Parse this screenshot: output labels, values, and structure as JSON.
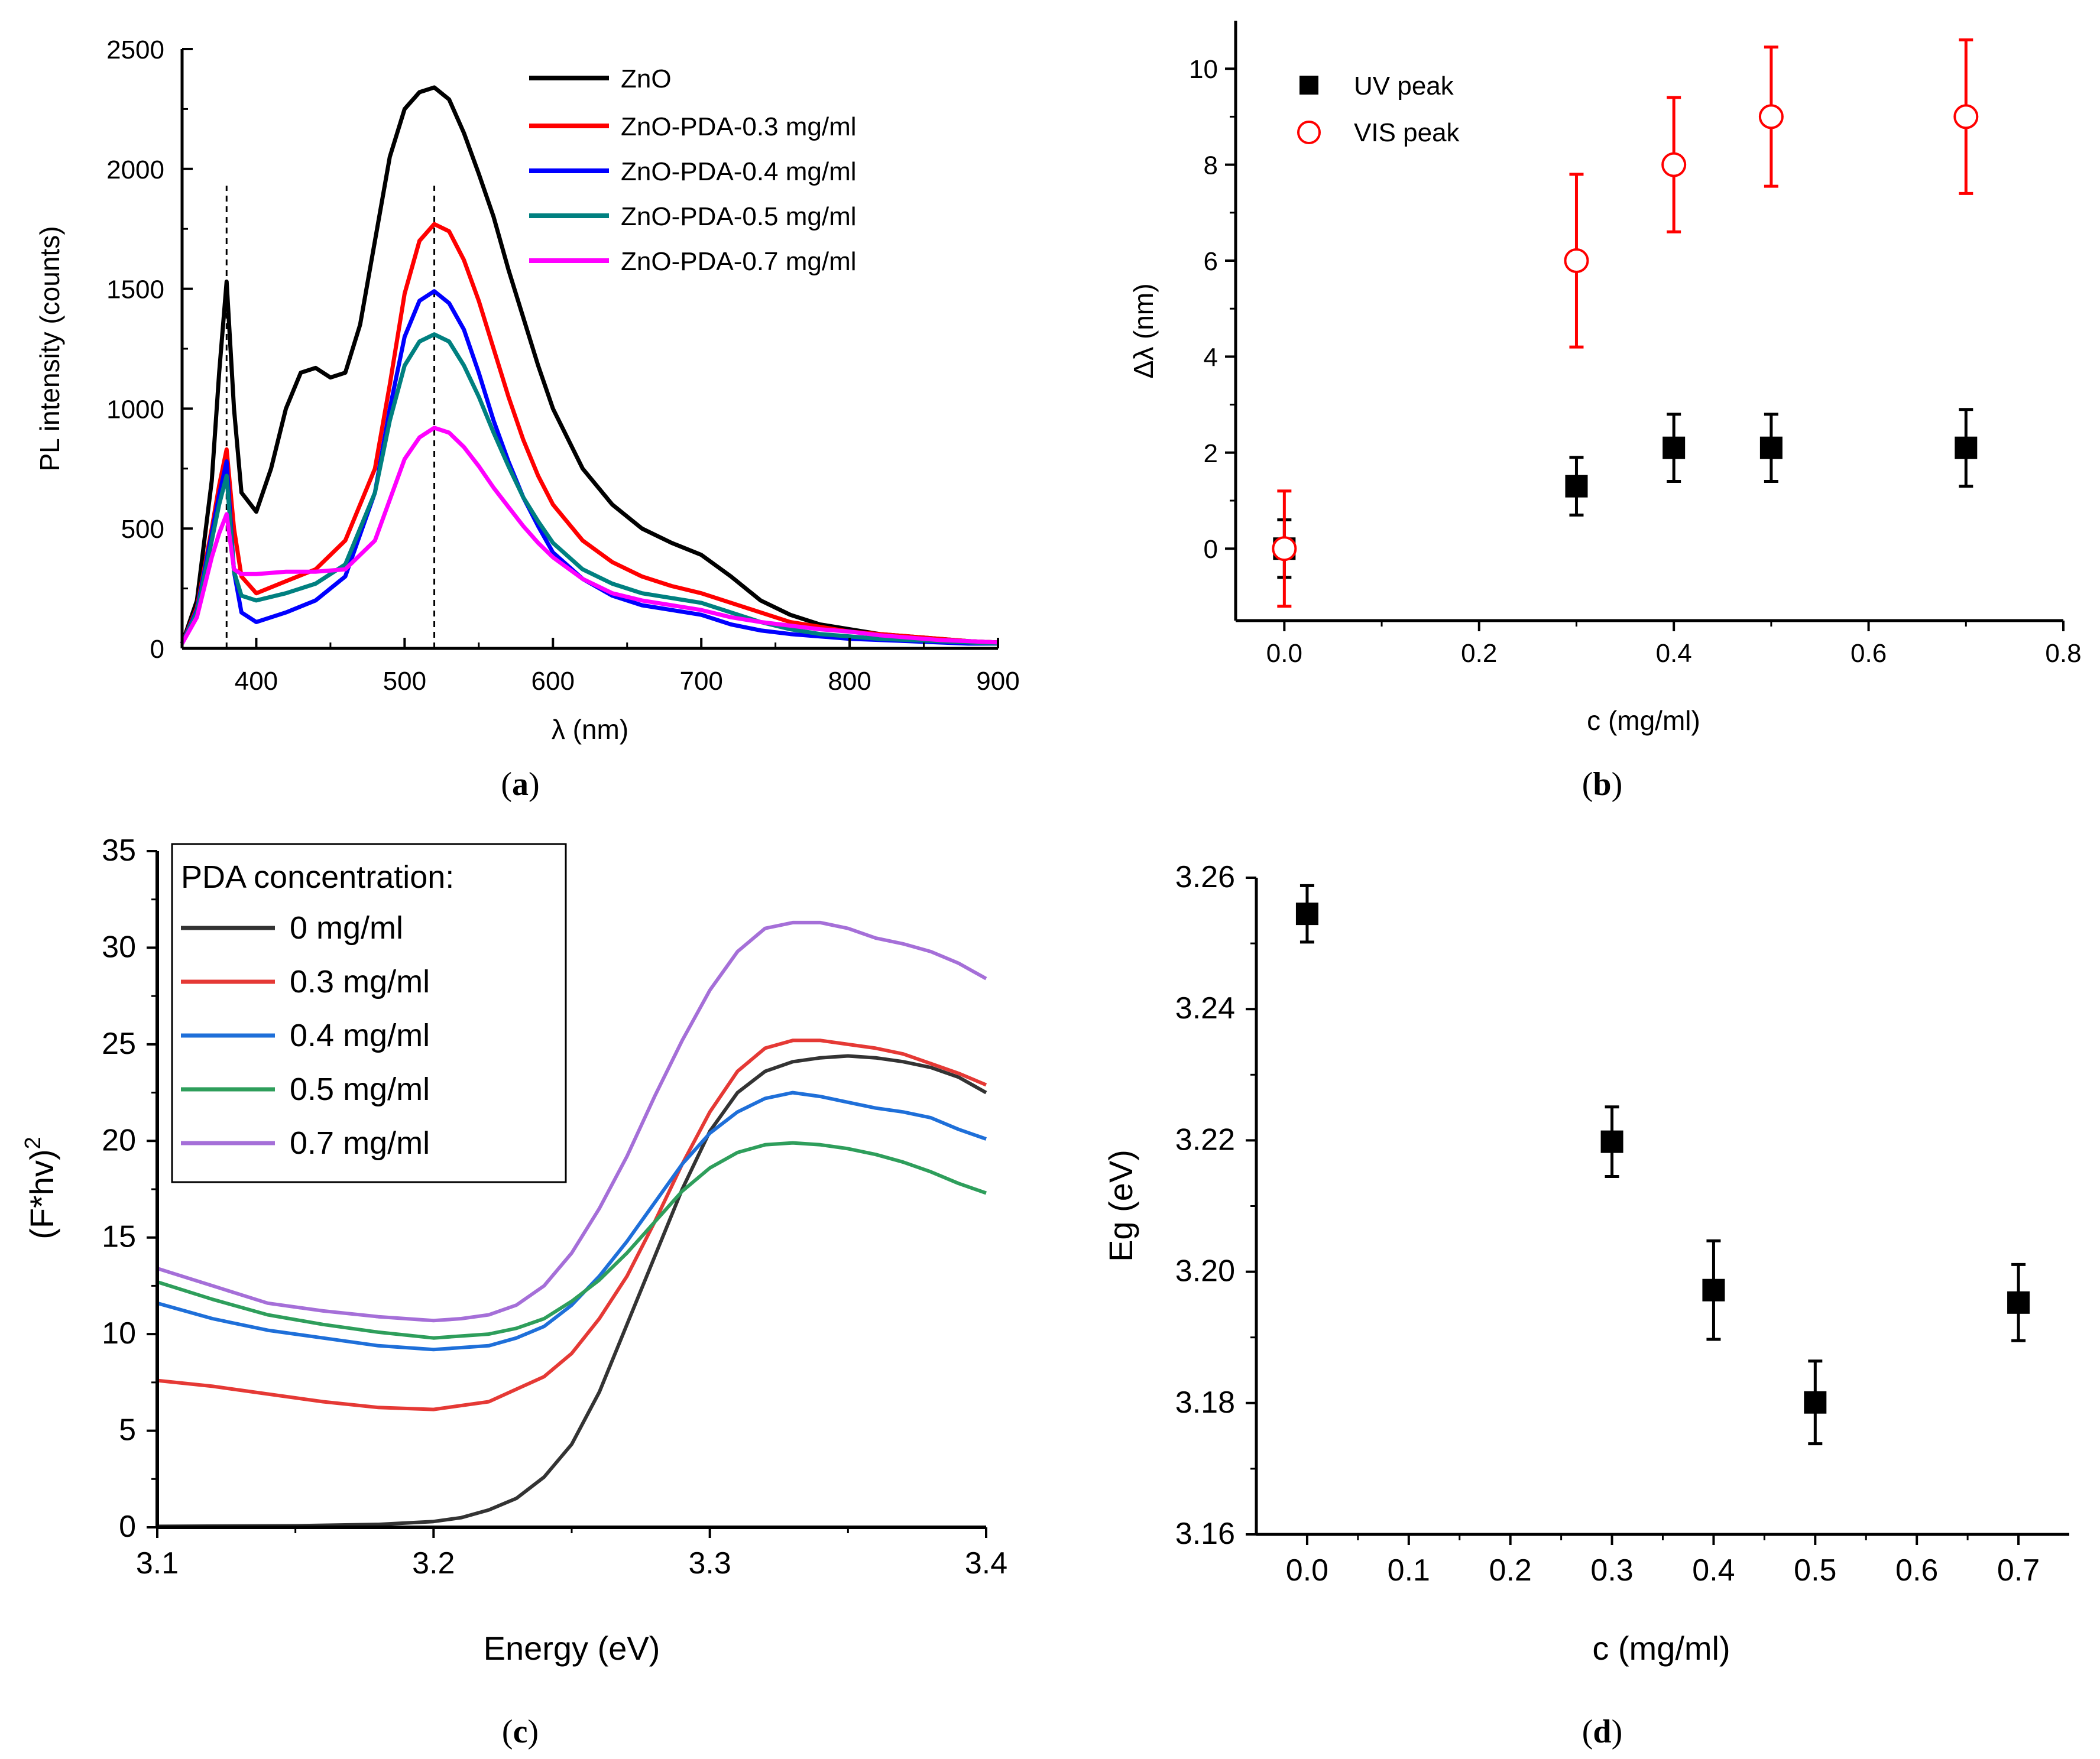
{
  "chart_data": [
    {
      "id": "a",
      "panel_label": "a",
      "type": "line",
      "xlabel": "λ (nm)",
      "ylabel": "PL intensity (counts)",
      "xlim": [
        350,
        900
      ],
      "ylim": [
        0,
        2500
      ],
      "xticks": [
        400,
        500,
        600,
        700,
        800,
        900
      ],
      "yticks": [
        0,
        500,
        1000,
        1500,
        2000,
        2500
      ],
      "grid": false,
      "legend_position": "top-right",
      "reference_lines_x": [
        380,
        520
      ],
      "series": [
        {
          "name": "ZnO",
          "color": "#000000",
          "x": [
            350,
            360,
            370,
            375,
            380,
            385,
            390,
            400,
            410,
            420,
            430,
            440,
            450,
            460,
            470,
            480,
            490,
            500,
            510,
            520,
            530,
            540,
            550,
            560,
            570,
            580,
            590,
            600,
            620,
            640,
            660,
            680,
            700,
            720,
            740,
            760,
            780,
            800,
            820,
            840,
            860,
            880,
            900
          ],
          "values": [
            20,
            200,
            700,
            1150,
            1530,
            1000,
            650,
            570,
            750,
            1000,
            1150,
            1170,
            1130,
            1150,
            1350,
            1700,
            2050,
            2250,
            2320,
            2340,
            2290,
            2150,
            1980,
            1800,
            1580,
            1380,
            1180,
            1000,
            750,
            600,
            500,
            440,
            390,
            300,
            200,
            140,
            100,
            80,
            60,
            50,
            40,
            30,
            25
          ]
        },
        {
          "name": "ZnO-PDA-0.3 mg/ml",
          "color": "#ff0000",
          "x": [
            350,
            360,
            370,
            375,
            380,
            385,
            390,
            400,
            420,
            440,
            460,
            480,
            490,
            500,
            510,
            520,
            530,
            540,
            550,
            560,
            570,
            580,
            590,
            600,
            620,
            640,
            660,
            680,
            700,
            720,
            740,
            760,
            780,
            800,
            820,
            840,
            860,
            880,
            900
          ],
          "values": [
            20,
            170,
            500,
            680,
            830,
            500,
            300,
            230,
            280,
            330,
            450,
            750,
            1100,
            1480,
            1700,
            1770,
            1740,
            1620,
            1450,
            1250,
            1050,
            870,
            720,
            600,
            450,
            360,
            300,
            260,
            230,
            190,
            150,
            110,
            90,
            70,
            60,
            50,
            40,
            30,
            25
          ]
        },
        {
          "name": "ZnO-PDA-0.4 mg/ml",
          "color": "#0000ff",
          "x": [
            350,
            360,
            370,
            375,
            380,
            385,
            390,
            400,
            420,
            440,
            460,
            480,
            490,
            500,
            510,
            520,
            530,
            540,
            550,
            560,
            570,
            580,
            590,
            600,
            620,
            640,
            660,
            680,
            700,
            720,
            740,
            760,
            780,
            800,
            820,
            840,
            860,
            880,
            900
          ],
          "values": [
            20,
            160,
            480,
            640,
            780,
            320,
            150,
            110,
            150,
            200,
            300,
            650,
            1000,
            1300,
            1450,
            1490,
            1440,
            1330,
            1150,
            950,
            780,
            630,
            510,
            400,
            290,
            220,
            180,
            160,
            140,
            100,
            75,
            60,
            50,
            40,
            35,
            30,
            25,
            20,
            20
          ]
        },
        {
          "name": "ZnO-PDA-0.5 mg/ml",
          "color": "#008080",
          "x": [
            350,
            360,
            370,
            375,
            380,
            385,
            390,
            400,
            420,
            440,
            460,
            480,
            490,
            500,
            510,
            520,
            530,
            540,
            550,
            560,
            570,
            580,
            590,
            600,
            620,
            640,
            660,
            680,
            700,
            720,
            740,
            760,
            780,
            800,
            820,
            840,
            860,
            880,
            900
          ],
          "values": [
            20,
            150,
            450,
            600,
            720,
            320,
            220,
            200,
            230,
            270,
            350,
            650,
            950,
            1180,
            1280,
            1310,
            1280,
            1180,
            1050,
            900,
            760,
            630,
            530,
            440,
            330,
            270,
            230,
            210,
            190,
            150,
            110,
            80,
            60,
            50,
            40,
            35,
            30,
            25,
            20
          ]
        },
        {
          "name": "ZnO-PDA-0.7 mg/ml",
          "color": "#ff00ff",
          "x": [
            350,
            360,
            370,
            375,
            380,
            385,
            390,
            400,
            420,
            440,
            460,
            480,
            490,
            500,
            510,
            520,
            530,
            540,
            550,
            560,
            570,
            580,
            590,
            600,
            620,
            640,
            660,
            680,
            700,
            720,
            740,
            760,
            780,
            800,
            820,
            840,
            860,
            880,
            900
          ],
          "values": [
            20,
            130,
            380,
            480,
            560,
            330,
            310,
            310,
            320,
            320,
            330,
            450,
            620,
            790,
            880,
            920,
            900,
            840,
            760,
            670,
            590,
            510,
            440,
            380,
            290,
            230,
            200,
            180,
            160,
            130,
            110,
            95,
            80,
            70,
            55,
            45,
            35,
            30,
            25
          ]
        }
      ]
    },
    {
      "id": "b",
      "panel_label": "b",
      "type": "scatter",
      "xlabel": "c (mg/ml)",
      "ylabel": "Δλ (nm)",
      "xlim": [
        -0.05,
        0.8
      ],
      "ylim": [
        -1.5,
        11
      ],
      "xticks": [
        0.0,
        0.2,
        0.4,
        0.6,
        0.8
      ],
      "yticks": [
        0,
        2,
        4,
        6,
        8,
        10
      ],
      "grid": false,
      "legend_position": "top-left",
      "series": [
        {
          "name": "UV peak",
          "color": "#000000",
          "marker": "filled-square",
          "x": [
            0.0,
            0.3,
            0.4,
            0.5,
            0.7
          ],
          "values": [
            0.0,
            1.3,
            2.1,
            2.1,
            2.1
          ],
          "errors": [
            0.6,
            0.6,
            0.7,
            0.7,
            0.8
          ]
        },
        {
          "name": "VIS peak",
          "color": "#ff0000",
          "marker": "open-circle",
          "x": [
            0.0,
            0.3,
            0.4,
            0.5,
            0.7
          ],
          "values": [
            0.0,
            6.0,
            8.0,
            9.0,
            9.0
          ],
          "errors": [
            1.2,
            1.8,
            1.4,
            1.45,
            1.6
          ]
        }
      ]
    },
    {
      "id": "c",
      "panel_label": "c",
      "type": "line",
      "xlabel": "Energy (eV)",
      "ylabel": "(F*hv)",
      "ylabel_superscript": "2",
      "xlim": [
        3.1,
        3.4
      ],
      "ylim": [
        0,
        35
      ],
      "xticks": [
        3.1,
        3.2,
        3.3,
        3.4
      ],
      "yticks": [
        0,
        5,
        10,
        15,
        20,
        25,
        30,
        35
      ],
      "grid": false,
      "legend_title": "PDA concentration:",
      "legend_position": "top-left",
      "series": [
        {
          "name": "0 mg/ml",
          "color": "#333333",
          "x": [
            3.1,
            3.15,
            3.18,
            3.2,
            3.21,
            3.22,
            3.23,
            3.24,
            3.25,
            3.26,
            3.27,
            3.28,
            3.29,
            3.3,
            3.31,
            3.32,
            3.33,
            3.34,
            3.35,
            3.36,
            3.37,
            3.38,
            3.39,
            3.4
          ],
          "values": [
            0.05,
            0.08,
            0.15,
            0.3,
            0.5,
            0.9,
            1.5,
            2.6,
            4.3,
            7.0,
            10.5,
            14.0,
            17.5,
            20.5,
            22.5,
            23.6,
            24.1,
            24.3,
            24.4,
            24.3,
            24.1,
            23.8,
            23.3,
            22.5
          ]
        },
        {
          "name": "0.3 mg/ml",
          "color": "#e53935",
          "x": [
            3.1,
            3.12,
            3.14,
            3.16,
            3.18,
            3.2,
            3.22,
            3.24,
            3.25,
            3.26,
            3.27,
            3.28,
            3.29,
            3.3,
            3.31,
            3.32,
            3.33,
            3.34,
            3.35,
            3.36,
            3.37,
            3.38,
            3.39,
            3.4
          ],
          "values": [
            7.6,
            7.3,
            6.9,
            6.5,
            6.2,
            6.1,
            6.5,
            7.8,
            9.0,
            10.8,
            13.0,
            15.8,
            18.8,
            21.5,
            23.6,
            24.8,
            25.2,
            25.2,
            25.0,
            24.8,
            24.5,
            24.0,
            23.5,
            22.9
          ]
        },
        {
          "name": "0.4 mg/ml",
          "color": "#1e6fd9",
          "x": [
            3.1,
            3.12,
            3.14,
            3.16,
            3.18,
            3.2,
            3.22,
            3.23,
            3.24,
            3.25,
            3.26,
            3.27,
            3.28,
            3.29,
            3.3,
            3.31,
            3.32,
            3.33,
            3.34,
            3.35,
            3.36,
            3.37,
            3.38,
            3.39,
            3.4
          ],
          "values": [
            11.6,
            10.8,
            10.2,
            9.8,
            9.4,
            9.2,
            9.4,
            9.8,
            10.4,
            11.5,
            13.0,
            14.8,
            16.8,
            18.8,
            20.4,
            21.5,
            22.2,
            22.5,
            22.3,
            22.0,
            21.7,
            21.5,
            21.2,
            20.6,
            20.1
          ]
        },
        {
          "name": "0.5 mg/ml",
          "color": "#2e9e5b",
          "x": [
            3.1,
            3.12,
            3.14,
            3.16,
            3.18,
            3.2,
            3.22,
            3.23,
            3.24,
            3.25,
            3.26,
            3.27,
            3.28,
            3.29,
            3.3,
            3.31,
            3.32,
            3.33,
            3.34,
            3.35,
            3.36,
            3.37,
            3.38,
            3.39,
            3.4
          ],
          "values": [
            12.7,
            11.8,
            11.0,
            10.5,
            10.1,
            9.8,
            10.0,
            10.3,
            10.8,
            11.7,
            12.8,
            14.2,
            15.8,
            17.4,
            18.6,
            19.4,
            19.8,
            19.9,
            19.8,
            19.6,
            19.3,
            18.9,
            18.4,
            17.8,
            17.3
          ]
        },
        {
          "name": "0.7 mg/ml",
          "color": "#a56fd8",
          "x": [
            3.1,
            3.12,
            3.14,
            3.16,
            3.18,
            3.2,
            3.21,
            3.22,
            3.23,
            3.24,
            3.25,
            3.26,
            3.27,
            3.28,
            3.29,
            3.3,
            3.31,
            3.32,
            3.33,
            3.34,
            3.35,
            3.36,
            3.37,
            3.38,
            3.39,
            3.4
          ],
          "values": [
            13.4,
            12.5,
            11.6,
            11.2,
            10.9,
            10.7,
            10.8,
            11.0,
            11.5,
            12.5,
            14.2,
            16.5,
            19.2,
            22.3,
            25.2,
            27.8,
            29.8,
            31.0,
            31.3,
            31.3,
            31.0,
            30.5,
            30.2,
            29.8,
            29.2,
            28.4
          ]
        }
      ]
    },
    {
      "id": "d",
      "panel_label": "d",
      "type": "scatter",
      "xlabel": "c (mg/ml)",
      "ylabel": "Eg (eV)",
      "xlim": [
        -0.05,
        0.75
      ],
      "ylim": [
        3.16,
        3.26
      ],
      "xticks": [
        0.0,
        0.1,
        0.2,
        0.3,
        0.4,
        0.5,
        0.6,
        0.7
      ],
      "yticks": [
        3.16,
        3.18,
        3.2,
        3.22,
        3.24,
        3.26
      ],
      "grid": false,
      "series": [
        {
          "name": "Eg",
          "color": "#000000",
          "marker": "filled-square",
          "x": [
            0.0,
            0.3,
            0.4,
            0.5,
            0.7
          ],
          "values": [
            3.2545,
            3.2198,
            3.1972,
            3.1801,
            3.1953
          ],
          "errors": [
            0.0043,
            0.0053,
            0.0075,
            0.0063,
            0.0058
          ]
        }
      ]
    }
  ]
}
